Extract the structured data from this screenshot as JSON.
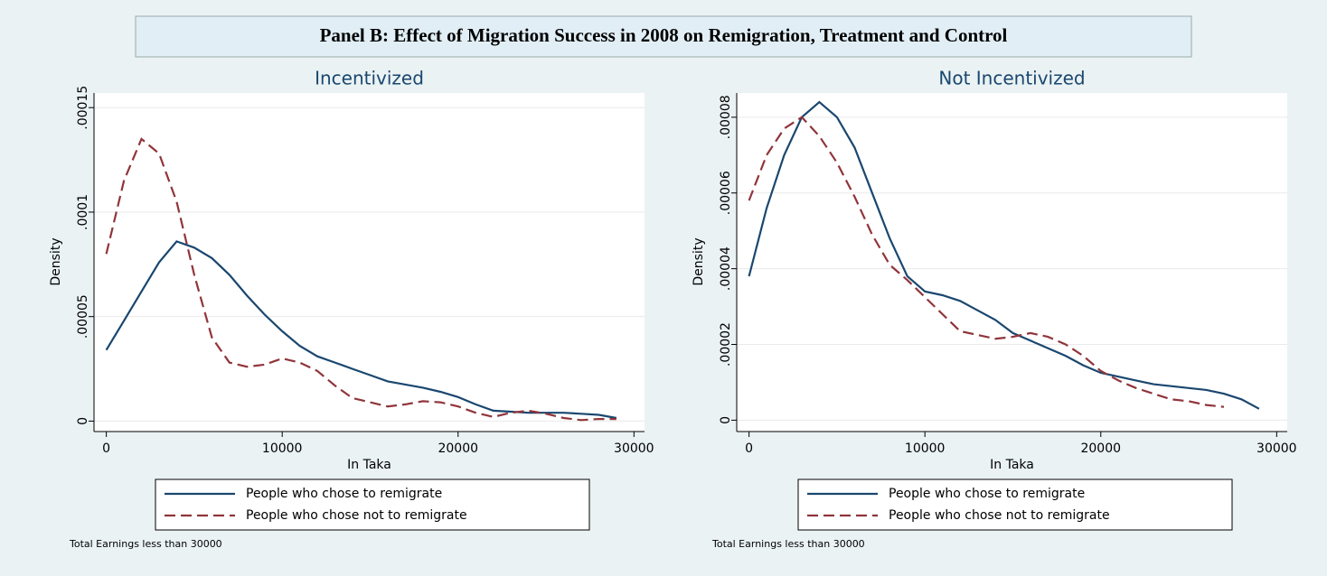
{
  "title": "Panel B: Effect of Migration Success in 2008 on Remigration, Treatment and Control",
  "chart_data": [
    {
      "type": "line",
      "title": "Incentivized",
      "xlabel": "In Taka",
      "ylabel": "Density",
      "note": "Total Earnings less than 30000",
      "x": [
        0,
        1000,
        2000,
        3000,
        4000,
        5000,
        6000,
        7000,
        8000,
        9000,
        10000,
        11000,
        12000,
        13000,
        14000,
        15000,
        16000,
        17000,
        18000,
        19000,
        20000,
        21000,
        22000,
        23000,
        24000,
        25000,
        26000,
        27000,
        28000,
        29000
      ],
      "series": [
        {
          "name": "People who chose to remigrate",
          "color": "#1a476f",
          "dash": false,
          "values": [
            3.4e-05,
            4.8e-05,
            6.2e-05,
            7.6e-05,
            8.6e-05,
            8.3e-05,
            7.8e-05,
            7e-05,
            6e-05,
            5.1e-05,
            4.3e-05,
            3.6e-05,
            3.1e-05,
            2.8e-05,
            2.5e-05,
            2.2e-05,
            1.9e-05,
            1.75e-05,
            1.6e-05,
            1.4e-05,
            1.15e-05,
            8e-06,
            5e-06,
            4.5e-06,
            4e-06,
            4e-06,
            4e-06,
            3.5e-06,
            3e-06,
            1.5e-06
          ]
        },
        {
          "name": "People who chose not to remigrate",
          "color": "#90353b",
          "dash": true,
          "values": [
            8e-05,
            0.000115,
            0.000135,
            0.000128,
            0.000105,
            7e-05,
            4e-05,
            2.8e-05,
            2.6e-05,
            2.7e-05,
            3e-05,
            2.8e-05,
            2.4e-05,
            1.7e-05,
            1.1e-05,
            9e-06,
            7e-06,
            8e-06,
            9.5e-06,
            9e-06,
            7e-06,
            4e-06,
            2e-06,
            4e-06,
            5e-06,
            3.5e-06,
            1.5e-06,
            5e-07,
            1e-06,
            1e-06
          ]
        }
      ],
      "xlim": [
        -700,
        30600
      ],
      "xticks": [
        0,
        10000,
        20000,
        30000
      ],
      "ylim": [
        -5e-06,
        0.000157
      ],
      "yticks": [
        0,
        {
          "value": 5e-05,
          "label": ".00005"
        },
        {
          "value": 0.0001,
          "label": ".0001"
        },
        {
          "value": 0.00015,
          "label": ".00015"
        }
      ],
      "grid": true
    },
    {
      "type": "line",
      "title": "Not Incentivized",
      "xlabel": "In Taka",
      "ylabel": "Density",
      "note": "Total Earnings less than 30000",
      "x": [
        0,
        1000,
        2000,
        3000,
        4000,
        5000,
        6000,
        7000,
        8000,
        9000,
        10000,
        11000,
        12000,
        13000,
        14000,
        15000,
        16000,
        17000,
        18000,
        19000,
        20000,
        21000,
        22000,
        23000,
        24000,
        25000,
        26000,
        27000,
        28000,
        29000
      ],
      "series": [
        {
          "name": "People who chose to remigrate",
          "color": "#1a476f",
          "dash": false,
          "values": [
            3.8e-05,
            5.6e-05,
            7e-05,
            8e-05,
            8.4e-05,
            8e-05,
            7.2e-05,
            6e-05,
            4.8e-05,
            3.8e-05,
            3.4e-05,
            3.3e-05,
            3.15e-05,
            2.9e-05,
            2.65e-05,
            2.3e-05,
            2.1e-05,
            1.9e-05,
            1.7e-05,
            1.45e-05,
            1.25e-05,
            1.15e-05,
            1.05e-05,
            9.5e-06,
            9e-06,
            8.5e-06,
            8e-06,
            7e-06,
            5.5e-06,
            3e-06
          ]
        },
        {
          "name": "People who chose not to remigrate",
          "color": "#90353b",
          "dash": true,
          "values": [
            5.8e-05,
            7e-05,
            7.7e-05,
            8e-05,
            7.5e-05,
            6.8e-05,
            5.9e-05,
            4.9e-05,
            4.1e-05,
            3.7e-05,
            3.25e-05,
            2.8e-05,
            2.35e-05,
            2.25e-05,
            2.15e-05,
            2.2e-05,
            2.3e-05,
            2.2e-05,
            2e-05,
            1.7e-05,
            1.3e-05,
            1.05e-05,
            8.5e-06,
            7e-06,
            5.5e-06,
            5e-06,
            4e-06,
            3.5e-06,
            null,
            null
          ]
        }
      ],
      "xlim": [
        -700,
        30600
      ],
      "xticks": [
        0,
        10000,
        20000,
        30000
      ],
      "ylim": [
        -3e-06,
        8.64e-05
      ],
      "yticks": [
        0,
        {
          "value": 2e-05,
          "label": ".00002"
        },
        {
          "value": 4e-05,
          "label": ".00004"
        },
        {
          "value": 6e-05,
          "label": ".00006"
        },
        {
          "value": 8e-05,
          "label": ".00008"
        }
      ],
      "grid": true
    }
  ]
}
